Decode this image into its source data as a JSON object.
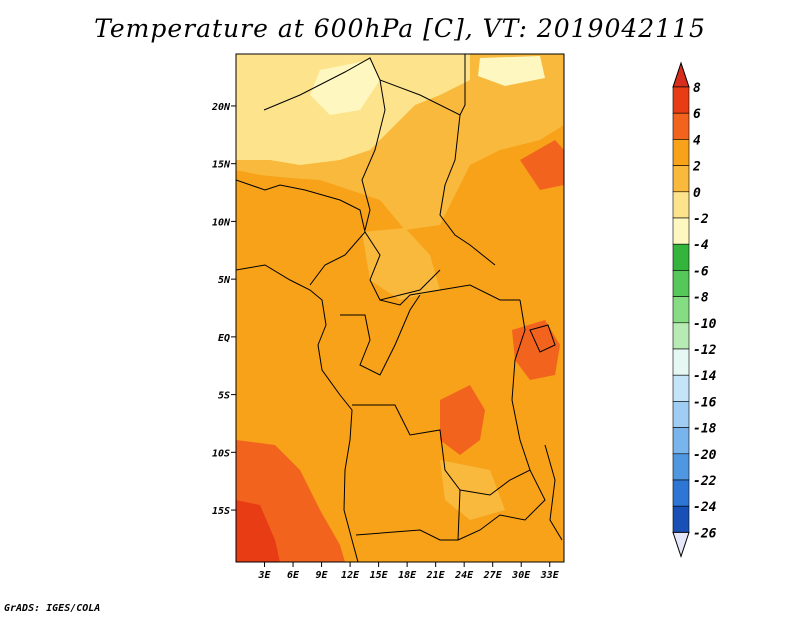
{
  "title": "Temperature at 600hPa [C], VT: 2019042115",
  "credit": "GrADS: IGES/COLA",
  "map": {
    "lon_range": [
      0,
      34.5
    ],
    "lat_range": [
      -19.5,
      24.5
    ],
    "lon_ticks": [
      {
        "value": 3,
        "label": "3E"
      },
      {
        "value": 6,
        "label": "6E"
      },
      {
        "value": 9,
        "label": "9E"
      },
      {
        "value": 12,
        "label": "12E"
      },
      {
        "value": 15,
        "label": "15E"
      },
      {
        "value": 18,
        "label": "18E"
      },
      {
        "value": 21,
        "label": "21E"
      },
      {
        "value": 24,
        "label": "24E"
      },
      {
        "value": 27,
        "label": "27E"
      },
      {
        "value": 30,
        "label": "30E"
      },
      {
        "value": 33,
        "label": "33E"
      }
    ],
    "lat_ticks": [
      {
        "value": 20,
        "label": "20N"
      },
      {
        "value": 15,
        "label": "15N"
      },
      {
        "value": 10,
        "label": "10N"
      },
      {
        "value": 5,
        "label": "5N"
      },
      {
        "value": 0,
        "label": "EQ"
      },
      {
        "value": -5,
        "label": "5S"
      },
      {
        "value": -10,
        "label": "10S"
      },
      {
        "value": -15,
        "label": "15S"
      }
    ]
  },
  "colorbar": {
    "labels": [
      "8",
      "6",
      "4",
      "2",
      "0",
      "-2",
      "-4",
      "-6",
      "-8",
      "-10",
      "-12",
      "-14",
      "-16",
      "-18",
      "-20",
      "-22",
      "-24",
      "-26"
    ],
    "top_color": "#d62d1c",
    "bottom_color": "#e6e6fa",
    "colors": [
      "#e83c14",
      "#f2641e",
      "#f7a219",
      "#f8b93c",
      "#fde48c",
      "#fff7c0",
      "#34b43c",
      "#56c85a",
      "#86dc82",
      "#b8ebb4",
      "#e6f8f4",
      "#c4e4f8",
      "#a0cdf4",
      "#7ab4ec",
      "#4f97e1",
      "#2d76d4",
      "#1950b5",
      "#102c8c",
      "#080850"
    ]
  }
}
